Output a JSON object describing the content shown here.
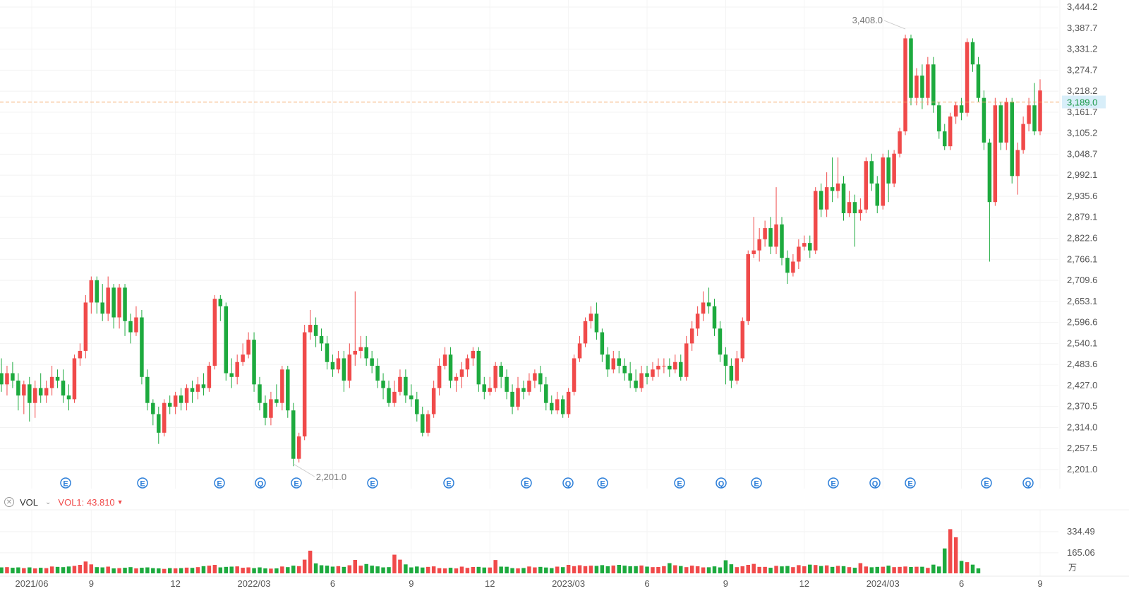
{
  "chart_data": {
    "type": "candlestick",
    "price_axis": {
      "ticks": [
        "3,444.2",
        "3,387.7",
        "3,331.2",
        "3,274.7",
        "3,218.2",
        "3,161.7",
        "3,105.2",
        "3,048.7",
        "2,992.1",
        "2,935.6",
        "2,879.1",
        "2,822.6",
        "2,766.1",
        "2,709.6",
        "2,653.1",
        "2,596.6",
        "2,540.1",
        "2,483.6",
        "2,427.0",
        "2,370.5",
        "2,314.0",
        "2,257.5",
        "2,201.0"
      ],
      "range": [
        2201.0,
        3444.2
      ]
    },
    "time_axis_labels": [
      "2021/06",
      "9",
      "12",
      "2022/03",
      "6",
      "9",
      "12",
      "2023/03",
      "6",
      "9",
      "12",
      "2024/03",
      "6",
      "9"
    ],
    "current_price": {
      "value": 3189.0,
      "label": "3,189.0"
    },
    "annotations": {
      "high": {
        "label": "3,408.0",
        "value": 3408.0
      },
      "low": {
        "label": "2,201.0",
        "value": 2201.0
      }
    },
    "event_markers": [
      "E",
      "E",
      "E",
      "Q",
      "E",
      "E",
      "E",
      "E",
      "Q",
      "E",
      "E",
      "Q",
      "E",
      "E",
      "Q",
      "E",
      "E",
      "Q"
    ],
    "candles": [
      [
        2460,
        2430,
        2500,
        2410
      ],
      [
        2430,
        2460,
        2480,
        2400
      ],
      [
        2460,
        2440,
        2490,
        2420
      ],
      [
        2440,
        2400,
        2460,
        2360
      ],
      [
        2400,
        2430,
        2440,
        2350
      ],
      [
        2430,
        2380,
        2450,
        2330
      ],
      [
        2380,
        2420,
        2440,
        2340
      ],
      [
        2420,
        2400,
        2460,
        2380
      ],
      [
        2400,
        2420,
        2440,
        2380
      ],
      [
        2420,
        2450,
        2480,
        2400
      ],
      [
        2450,
        2440,
        2470,
        2420
      ],
      [
        2440,
        2400,
        2470,
        2380
      ],
      [
        2400,
        2390,
        2430,
        2360
      ],
      [
        2390,
        2500,
        2510,
        2380
      ],
      [
        2500,
        2520,
        2540,
        2480
      ],
      [
        2520,
        2650,
        2670,
        2500
      ],
      [
        2650,
        2710,
        2720,
        2620
      ],
      [
        2710,
        2650,
        2720,
        2620
      ],
      [
        2650,
        2620,
        2700,
        2600
      ],
      [
        2620,
        2690,
        2720,
        2600
      ],
      [
        2690,
        2610,
        2700,
        2580
      ],
      [
        2610,
        2690,
        2700,
        2580
      ],
      [
        2690,
        2600,
        2700,
        2560
      ],
      [
        2600,
        2570,
        2620,
        2540
      ],
      [
        2570,
        2610,
        2640,
        2560
      ],
      [
        2610,
        2450,
        2630,
        2430
      ],
      [
        2450,
        2380,
        2470,
        2360
      ],
      [
        2380,
        2350,
        2390,
        2320
      ],
      [
        2350,
        2300,
        2370,
        2270
      ],
      [
        2300,
        2380,
        2390,
        2290
      ],
      [
        2380,
        2370,
        2400,
        2350
      ],
      [
        2370,
        2400,
        2410,
        2350
      ],
      [
        2400,
        2380,
        2420,
        2360
      ],
      [
        2380,
        2420,
        2430,
        2360
      ],
      [
        2420,
        2410,
        2440,
        2380
      ],
      [
        2410,
        2430,
        2450,
        2390
      ],
      [
        2430,
        2420,
        2460,
        2400
      ],
      [
        2420,
        2480,
        2490,
        2410
      ],
      [
        2480,
        2660,
        2670,
        2470
      ],
      [
        2660,
        2640,
        2670,
        2600
      ],
      [
        2640,
        2460,
        2650,
        2440
      ],
      [
        2460,
        2450,
        2500,
        2420
      ],
      [
        2450,
        2490,
        2510,
        2430
      ],
      [
        2490,
        2510,
        2540,
        2480
      ],
      [
        2510,
        2550,
        2570,
        2500
      ],
      [
        2550,
        2430,
        2570,
        2410
      ],
      [
        2430,
        2380,
        2450,
        2360
      ],
      [
        2380,
        2340,
        2400,
        2320
      ],
      [
        2340,
        2390,
        2410,
        2320
      ],
      [
        2390,
        2380,
        2430,
        2370
      ],
      [
        2380,
        2470,
        2480,
        2360
      ],
      [
        2470,
        2360,
        2480,
        2340
      ],
      [
        2360,
        2230,
        2380,
        2210
      ],
      [
        2230,
        2290,
        2300,
        2220
      ],
      [
        2290,
        2570,
        2590,
        2280
      ],
      [
        2570,
        2590,
        2630,
        2550
      ],
      [
        2590,
        2560,
        2610,
        2530
      ],
      [
        2560,
        2540,
        2580,
        2520
      ],
      [
        2540,
        2490,
        2560,
        2470
      ],
      [
        2490,
        2470,
        2510,
        2450
      ],
      [
        2470,
        2500,
        2520,
        2460
      ],
      [
        2500,
        2440,
        2520,
        2410
      ],
      [
        2440,
        2510,
        2540,
        2420
      ],
      [
        2510,
        2520,
        2680,
        2480
      ],
      [
        2520,
        2530,
        2560,
        2500
      ],
      [
        2530,
        2500,
        2560,
        2480
      ],
      [
        2500,
        2480,
        2520,
        2460
      ],
      [
        2480,
        2440,
        2500,
        2420
      ],
      [
        2440,
        2420,
        2460,
        2390
      ],
      [
        2420,
        2380,
        2440,
        2370
      ],
      [
        2380,
        2410,
        2440,
        2370
      ],
      [
        2410,
        2450,
        2470,
        2400
      ],
      [
        2450,
        2400,
        2470,
        2380
      ],
      [
        2400,
        2390,
        2430,
        2370
      ],
      [
        2390,
        2350,
        2410,
        2330
      ],
      [
        2350,
        2300,
        2370,
        2290
      ],
      [
        2300,
        2350,
        2360,
        2290
      ],
      [
        2350,
        2420,
        2440,
        2340
      ],
      [
        2420,
        2480,
        2500,
        2400
      ],
      [
        2480,
        2510,
        2530,
        2470
      ],
      [
        2510,
        2440,
        2530,
        2420
      ],
      [
        2440,
        2450,
        2460,
        2410
      ],
      [
        2450,
        2470,
        2490,
        2420
      ],
      [
        2470,
        2500,
        2510,
        2450
      ],
      [
        2500,
        2520,
        2530,
        2480
      ],
      [
        2520,
        2430,
        2530,
        2410
      ],
      [
        2430,
        2410,
        2450,
        2390
      ],
      [
        2410,
        2420,
        2450,
        2400
      ],
      [
        2420,
        2480,
        2490,
        2410
      ],
      [
        2480,
        2450,
        2490,
        2420
      ],
      [
        2450,
        2410,
        2470,
        2390
      ],
      [
        2410,
        2370,
        2430,
        2350
      ],
      [
        2370,
        2420,
        2450,
        2360
      ],
      [
        2420,
        2410,
        2440,
        2390
      ],
      [
        2410,
        2440,
        2460,
        2400
      ],
      [
        2440,
        2460,
        2470,
        2420
      ],
      [
        2460,
        2430,
        2480,
        2410
      ],
      [
        2430,
        2380,
        2450,
        2360
      ],
      [
        2380,
        2360,
        2400,
        2350
      ],
      [
        2360,
        2390,
        2410,
        2350
      ],
      [
        2390,
        2350,
        2400,
        2340
      ],
      [
        2350,
        2410,
        2420,
        2340
      ],
      [
        2410,
        2500,
        2510,
        2400
      ],
      [
        2500,
        2540,
        2560,
        2490
      ],
      [
        2540,
        2600,
        2610,
        2530
      ],
      [
        2600,
        2620,
        2640,
        2580
      ],
      [
        2620,
        2570,
        2650,
        2550
      ],
      [
        2570,
        2510,
        2580,
        2490
      ],
      [
        2510,
        2470,
        2530,
        2450
      ],
      [
        2470,
        2500,
        2520,
        2460
      ],
      [
        2500,
        2480,
        2520,
        2460
      ],
      [
        2480,
        2460,
        2500,
        2440
      ],
      [
        2460,
        2440,
        2490,
        2420
      ],
      [
        2440,
        2420,
        2470,
        2410
      ],
      [
        2420,
        2460,
        2480,
        2410
      ],
      [
        2460,
        2450,
        2480,
        2430
      ],
      [
        2450,
        2470,
        2490,
        2440
      ],
      [
        2470,
        2480,
        2500,
        2450
      ],
      [
        2480,
        2480,
        2500,
        2460
      ],
      [
        2480,
        2470,
        2500,
        2450
      ],
      [
        2470,
        2490,
        2510,
        2460
      ],
      [
        2490,
        2450,
        2510,
        2440
      ],
      [
        2450,
        2540,
        2560,
        2440
      ],
      [
        2540,
        2580,
        2600,
        2520
      ],
      [
        2580,
        2620,
        2640,
        2560
      ],
      [
        2620,
        2650,
        2680,
        2600
      ],
      [
        2650,
        2640,
        2690,
        2620
      ],
      [
        2640,
        2580,
        2660,
        2560
      ],
      [
        2580,
        2510,
        2600,
        2490
      ],
      [
        2510,
        2480,
        2530,
        2430
      ],
      [
        2480,
        2440,
        2500,
        2420
      ],
      [
        2440,
        2500,
        2520,
        2430
      ],
      [
        2500,
        2600,
        2610,
        2490
      ],
      [
        2600,
        2780,
        2790,
        2590
      ],
      [
        2780,
        2790,
        2880,
        2770
      ],
      [
        2790,
        2820,
        2850,
        2760
      ],
      [
        2820,
        2850,
        2870,
        2800
      ],
      [
        2850,
        2800,
        2880,
        2780
      ],
      [
        2800,
        2860,
        2960,
        2780
      ],
      [
        2860,
        2770,
        2880,
        2750
      ],
      [
        2770,
        2730,
        2790,
        2700
      ],
      [
        2730,
        2760,
        2780,
        2720
      ],
      [
        2760,
        2800,
        2820,
        2740
      ],
      [
        2800,
        2810,
        2830,
        2790
      ],
      [
        2810,
        2790,
        2830,
        2770
      ],
      [
        2790,
        2950,
        2960,
        2780
      ],
      [
        2950,
        2900,
        2970,
        2880
      ],
      [
        2900,
        2960,
        3000,
        2880
      ],
      [
        2960,
        2950,
        3040,
        2920
      ],
      [
        2950,
        2970,
        3040,
        2930
      ],
      [
        2970,
        2890,
        2990,
        2870
      ],
      [
        2890,
        2920,
        2950,
        2880
      ],
      [
        2920,
        2890,
        2940,
        2800
      ],
      [
        2890,
        2900,
        2930,
        2870
      ],
      [
        2900,
        3030,
        3040,
        2890
      ],
      [
        3030,
        2970,
        3050,
        2950
      ],
      [
        2970,
        2910,
        2990,
        2890
      ],
      [
        2910,
        3040,
        3050,
        2900
      ],
      [
        3040,
        2970,
        3060,
        2920
      ],
      [
        2970,
        3050,
        3060,
        2960
      ],
      [
        3050,
        3110,
        3120,
        3040
      ],
      [
        3110,
        3360,
        3370,
        3100
      ],
      [
        3360,
        3200,
        3370,
        3180
      ],
      [
        3200,
        3260,
        3280,
        3180
      ],
      [
        3260,
        3200,
        3290,
        3170
      ],
      [
        3200,
        3290,
        3310,
        3180
      ],
      [
        3290,
        3180,
        3310,
        3160
      ],
      [
        3180,
        3110,
        3190,
        3090
      ],
      [
        3110,
        3070,
        3130,
        3060
      ],
      [
        3070,
        3150,
        3160,
        3060
      ],
      [
        3150,
        3180,
        3190,
        3130
      ],
      [
        3180,
        3160,
        3200,
        3140
      ],
      [
        3160,
        3350,
        3360,
        3150
      ],
      [
        3350,
        3290,
        3360,
        3270
      ],
      [
        3290,
        3200,
        3310,
        3190
      ],
      [
        3200,
        3080,
        3220,
        3060
      ],
      [
        3080,
        2920,
        3090,
        2760
      ],
      [
        2920,
        3180,
        3200,
        2910
      ],
      [
        3180,
        3080,
        3190,
        3060
      ],
      [
        3080,
        3190,
        3200,
        3060
      ],
      [
        3190,
        2990,
        3200,
        2970
      ],
      [
        2990,
        3060,
        3080,
        2940
      ],
      [
        3060,
        3130,
        3150,
        3050
      ],
      [
        3130,
        3180,
        3200,
        3110
      ],
      [
        3180,
        3110,
        3240,
        3100
      ],
      [
        3110,
        3220,
        3250,
        3100
      ]
    ],
    "volume": {
      "indicator": "VOL",
      "series_label": "VOL1",
      "current_value": "43.810",
      "unit_label": "万",
      "axis_ticks": [
        "334.49",
        "165.06"
      ],
      "range": [
        0,
        380
      ]
    },
    "volumes": [
      48,
      50,
      45,
      48,
      42,
      48,
      40,
      45,
      42,
      55,
      52,
      50,
      55,
      60,
      68,
      95,
      72,
      50,
      48,
      54,
      40,
      42,
      45,
      50,
      40,
      45,
      48,
      42,
      40,
      36,
      42,
      40,
      42,
      46,
      44,
      50,
      58,
      62,
      68,
      48,
      52,
      54,
      56,
      45,
      48,
      42,
      48,
      40,
      38,
      40,
      55,
      50,
      62,
      58,
      110,
      182,
      80,
      65,
      62,
      54,
      58,
      52,
      65,
      108,
      62,
      75,
      62,
      56,
      48,
      50,
      150,
      110,
      72,
      48,
      55,
      47,
      52,
      56,
      42,
      40,
      45,
      40,
      54,
      44,
      51,
      52,
      47,
      47,
      107,
      54,
      53,
      42,
      40,
      43,
      55,
      48,
      52,
      47,
      42,
      54,
      50,
      68,
      58,
      65,
      58,
      62,
      60,
      66,
      57,
      63,
      68,
      62,
      57,
      58,
      63,
      54,
      50,
      51,
      58,
      82,
      65,
      59,
      50,
      62,
      57,
      48,
      49,
      56,
      48,
      105,
      73,
      50,
      57,
      68,
      76,
      52,
      52,
      45,
      60,
      56,
      59,
      50,
      66,
      57,
      70,
      67,
      59,
      64,
      52,
      60,
      58,
      50,
      45,
      82,
      55,
      49,
      52,
      53,
      62,
      50,
      52,
      55,
      51,
      53,
      53,
      44,
      70,
      55,
      200,
      355,
      290,
      100,
      90,
      70,
      40
    ]
  }
}
